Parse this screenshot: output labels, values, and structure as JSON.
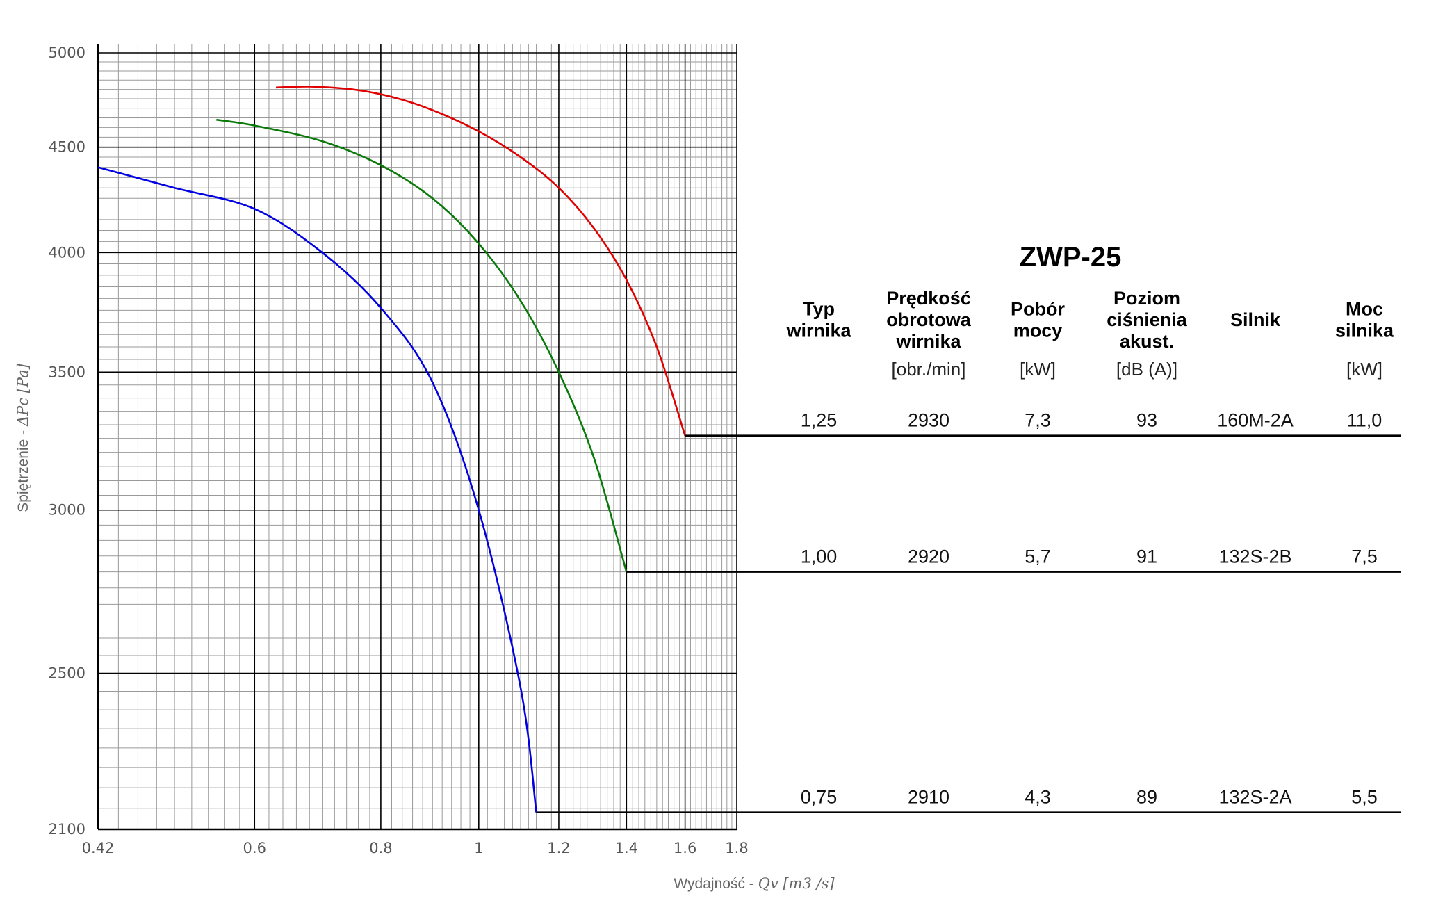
{
  "chart_data": {
    "type": "line",
    "title": "ZWP-25",
    "xlabel_prefix": "Wydajność - ",
    "xlabel_math": "Qv [m3 /s]",
    "ylabel_prefix": "Spiętrzenie - ",
    "ylabel_math": "ΔPc [Pa]",
    "x_scale": "log",
    "y_scale": "log",
    "xlim": [
      0.42,
      1.8
    ],
    "ylim": [
      2100,
      5000
    ],
    "x_ticks": [
      "0.42",
      "0.6",
      "0.8",
      "1",
      "1.2",
      "1.4",
      "1.6",
      "1.8"
    ],
    "y_ticks": [
      "5000",
      "4500",
      "4000",
      "3500",
      "3000",
      "2500",
      "2100"
    ],
    "grid": true,
    "series": [
      {
        "color": "#e00000",
        "x": [
          0.63,
          0.68,
          0.75,
          0.82,
          0.9,
          1.0,
          1.1,
          1.2,
          1.3,
          1.4,
          1.5,
          1.6
        ],
        "y": [
          4810,
          4815,
          4800,
          4760,
          4690,
          4580,
          4450,
          4300,
          4110,
          3880,
          3600,
          3260
        ]
      },
      {
        "color": "#0a7a0a",
        "x": [
          0.55,
          0.6,
          0.7,
          0.8,
          0.9,
          1.0,
          1.1,
          1.2,
          1.3,
          1.4
        ],
        "y": [
          4640,
          4610,
          4530,
          4410,
          4250,
          4040,
          3790,
          3500,
          3180,
          2800
        ]
      },
      {
        "color": "#0000e0",
        "x": [
          0.42,
          0.5,
          0.6,
          0.7,
          0.8,
          0.9,
          1.0,
          1.1,
          1.14
        ],
        "y": [
          4400,
          4300,
          4200,
          4000,
          3760,
          3460,
          3000,
          2460,
          2140
        ]
      }
    ],
    "table": {
      "columns": [
        {
          "header": [
            "Typ",
            "wirnika"
          ],
          "unit": ""
        },
        {
          "header": [
            "Prędkość",
            "obrotowa",
            "wirnika"
          ],
          "unit": "[obr./min]"
        },
        {
          "header": [
            "Pobór",
            "mocy"
          ],
          "unit": "[kW]"
        },
        {
          "header": [
            "Poziom",
            "ciśnienia",
            "akust."
          ],
          "unit": "[dB (A)]"
        },
        {
          "header": [
            "Silnik"
          ],
          "unit": ""
        },
        {
          "header": [
            "Moc",
            "silnika"
          ],
          "unit": "[kW]"
        }
      ],
      "rows": [
        {
          "values": [
            "1,25",
            "2930",
            "7,3",
            "93",
            "160M-2A",
            "11,0"
          ],
          "end_q": 1.6,
          "end_p": 3260
        },
        {
          "values": [
            "1,00",
            "2920",
            "5,7",
            "91",
            "132S-2B",
            "7,5"
          ],
          "end_q": 1.4,
          "end_p": 2800
        },
        {
          "values": [
            "0,75",
            "2910",
            "4,3",
            "89",
            "132S-2A",
            "5,5"
          ],
          "end_q": 1.14,
          "end_p": 2140
        }
      ]
    }
  }
}
